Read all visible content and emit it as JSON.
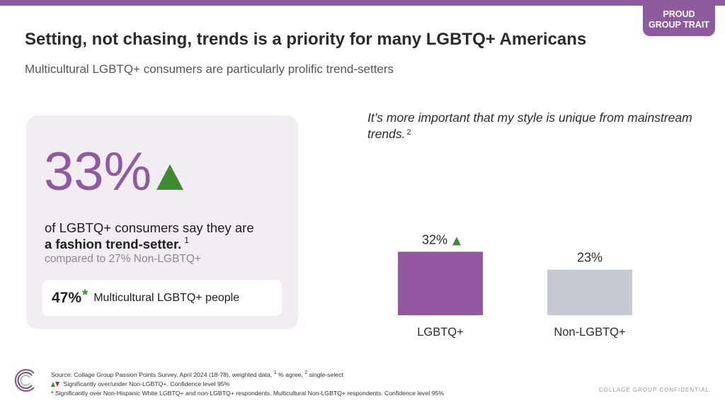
{
  "tag": {
    "line1": "PROUD",
    "line2": "GROUP TRAIT"
  },
  "title": "Setting, not chasing, trends is a priority for many LGBTQ+ Americans",
  "subtitle": "Multicultural LGBTQ+ consumers are particularly prolific trend-setters",
  "stat": {
    "big_value": "33%",
    "line1": "of LGBTQ+ consumers say they are",
    "line2": "a fashion trend-setter.",
    "line2_note": "1",
    "compare": "compared to 27% Non-LGBTQ+",
    "sub_value": "47%",
    "sub_star": "*",
    "sub_label": "Multicultural LGBTQ+ people"
  },
  "quote": {
    "text": "It’s more important that my style is unique from mainstream trends.",
    "note": "2"
  },
  "chart_data": {
    "type": "bar",
    "categories": [
      "LGBTQ+",
      "Non-LGBTQ+"
    ],
    "values": [
      32,
      23
    ],
    "value_labels": [
      "32%",
      "23%"
    ],
    "significance": [
      "up",
      null
    ],
    "colors": [
      "#93589f",
      "#c5cad1"
    ],
    "ylim": [
      0,
      40
    ]
  },
  "footnotes": {
    "source_prefix": "Source: Collage Group Passion Points Survey, April 2024 (18-78), weighted data,",
    "note1": "1",
    "agree": "% agree,",
    "note2": "2",
    "single": "single-select",
    "sig_text": "Significantly over/under Non-LGBTQ+. Confidence level 95%",
    "star_text": "Significantly over Non-Hispanic White LGBTQ+ and non-LGBTQ+ respondents, Multicultural Non-LGBTQ+ respondents. Confidence level 95%",
    "star": "*"
  },
  "confidential": "COLLAGE GROUP CONFIDENTIAL",
  "colors": {
    "accent": "#8e5b9e",
    "positive": "#3d8b2f",
    "negative": "#c0282d",
    "comparison": "#c5cad1"
  }
}
